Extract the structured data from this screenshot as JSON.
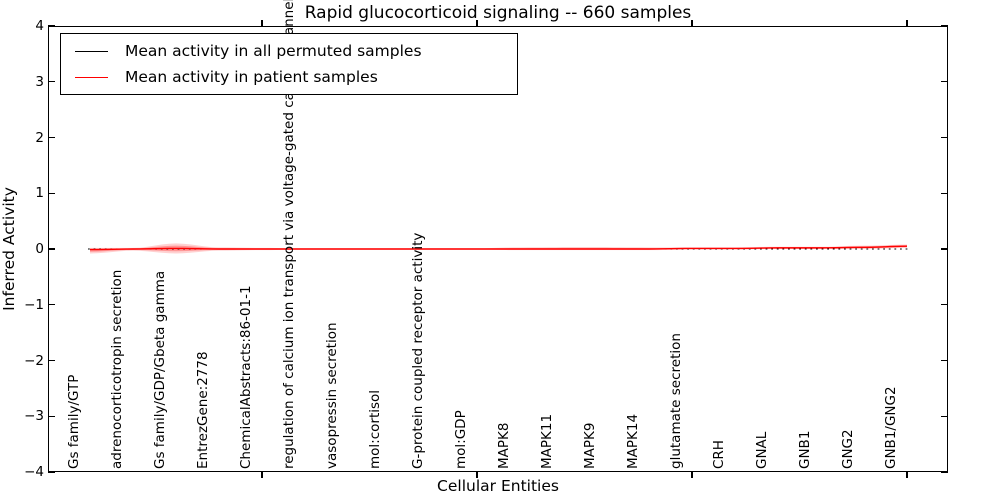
{
  "title": "Rapid glucocorticoid signaling -- 660 samples",
  "axes": {
    "xlabel": "Cellular Entities",
    "ylabel": "Inferred Activity",
    "ytick_labels": [
      "4",
      "3",
      "2",
      "1",
      "0",
      "−1",
      "−2",
      "−3",
      "−4"
    ]
  },
  "legend": {
    "items": [
      {
        "label": "Mean activity in all permuted samples",
        "color": "#000000"
      },
      {
        "label": "Mean activity in patient samples",
        "color": "#ff0000"
      }
    ]
  },
  "chart_data": {
    "type": "line",
    "title": "Rapid glucocorticoid signaling -- 660 samples",
    "xlabel": "Cellular Entities",
    "ylabel": "Inferred Activity",
    "ylim": [
      -4,
      4
    ],
    "yticks": [
      4,
      3,
      2,
      1,
      0,
      -1,
      -2,
      -3,
      -4
    ],
    "grid": false,
    "legend_position": "upper left",
    "categories": [
      "Gs family/GTP",
      "adrenocorticotropin secretion",
      "Gs family/GDP/Gbeta gamma",
      "EntrezGene:2778",
      "ChemicalAbstracts:86-01-1",
      "regulation of calcium ion transport via voltage-gated calcium channels",
      "vasopressin secretion",
      "mol:cortisol",
      "G-protein coupled receptor activity",
      "mol:GDP",
      "MAPK8",
      "MAPK11",
      "MAPK9",
      "MAPK14",
      "glutamate secretion",
      "CRH",
      "GNAL",
      "GNB1",
      "GNG2",
      "GNB1/GNG2"
    ],
    "series": [
      {
        "name": "Mean activity in all permuted samples",
        "color": "#000000",
        "style": "dotted",
        "values": [
          0,
          0,
          0,
          0,
          0,
          0,
          0,
          0,
          0,
          0,
          0,
          0,
          0,
          0,
          0,
          0,
          0,
          0,
          0,
          0
        ]
      },
      {
        "name": "Mean activity in patient samples",
        "color": "#ff0000",
        "style": "solid",
        "values": [
          -0.01,
          0,
          0.01,
          0,
          0,
          0,
          0,
          0,
          0,
          0,
          0,
          0,
          0,
          0,
          0.01,
          0.01,
          0.02,
          0.02,
          0.03,
          0.05
        ]
      }
    ],
    "patient_band_halfwidth": {
      "upper": [
        0.03,
        0.02,
        0.09,
        0.03,
        0.02,
        0.015,
        0.015,
        0.015,
        0.015,
        0.015,
        0.03,
        0.035,
        0.035,
        0.03,
        0.02,
        0.02,
        0.02,
        0.02,
        0.03,
        0.03
      ],
      "lower": [
        0.07,
        0.03,
        0.09,
        0.03,
        0.02,
        0.015,
        0.015,
        0.015,
        0.015,
        0.015,
        0.02,
        0.02,
        0.02,
        0.02,
        0.02,
        0.02,
        0.02,
        0.02,
        0.03,
        0.03
      ]
    }
  }
}
